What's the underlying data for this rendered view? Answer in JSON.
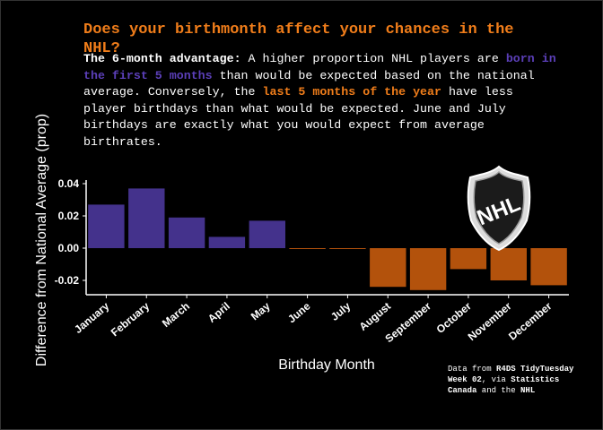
{
  "title": "Does your birthmonth affect your chances in the NHL?",
  "subtitle": {
    "lead": "The 6-month advantage:",
    "t1": " A higher proportion NHL players are ",
    "h1": "born in the first 5 months",
    "t2": " than would be expected based on the national average. Conversely, the ",
    "h2": "last 5 months of the year",
    "t3": " have less player birthdays than what would be expected. June and July birthdays are exactly what you would expect from average birthrates."
  },
  "caption": {
    "c1": "Data from ",
    "b1": "R4DS TidyTuesday Week 02",
    "c2": ", via ",
    "b2": "Statistics Canada",
    "c3": " and the ",
    "b3": "NHL"
  },
  "logo": {
    "icon": "nhl-shield-logo",
    "text": "NHL"
  },
  "colors": {
    "positive": "#44328c",
    "negative": "#b3520c",
    "text": "#ffffff",
    "title": "#f07d1a",
    "background": "#000000"
  },
  "chart_data": {
    "type": "bar",
    "xlabel": "Birthday Month",
    "ylabel": "Difference from National Average (prop)",
    "categories": [
      "January",
      "February",
      "March",
      "April",
      "May",
      "June",
      "July",
      "August",
      "September",
      "October",
      "November",
      "December"
    ],
    "values": [
      0.027,
      0.037,
      0.019,
      0.007,
      0.017,
      -0.0005,
      -0.0005,
      -0.024,
      -0.026,
      -0.013,
      -0.02,
      -0.023
    ],
    "yticks": [
      "0.04",
      "0.02",
      "0.00",
      "-0.02"
    ],
    "ytick_values": [
      0.04,
      0.02,
      0.0,
      -0.02
    ],
    "ylim": [
      -0.028,
      0.041
    ],
    "grid": false,
    "legend": "none"
  }
}
